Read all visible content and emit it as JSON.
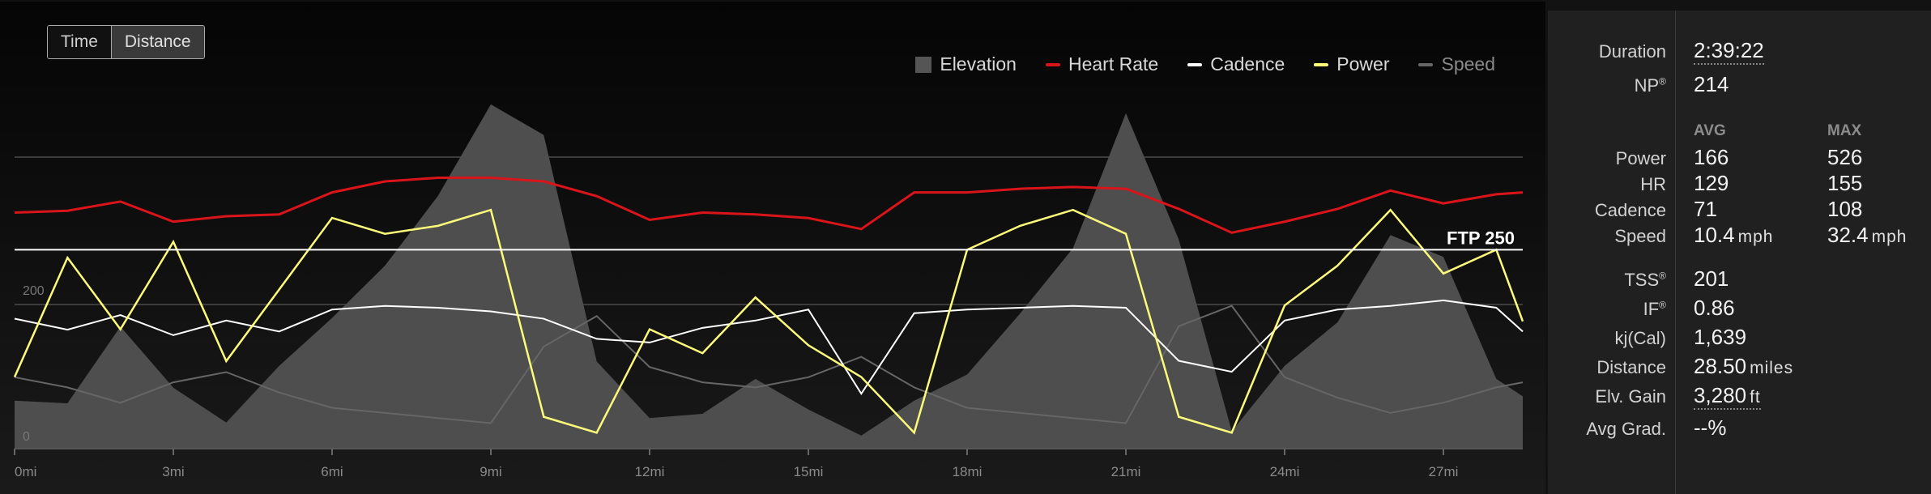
{
  "toggle": {
    "time_label": "Time",
    "distance_label": "Distance",
    "active": "distance"
  },
  "legend": [
    {
      "label": "Elevation",
      "color": "#555555",
      "kind": "box"
    },
    {
      "label": "Heart Rate",
      "color": "#d9141a",
      "kind": "line"
    },
    {
      "label": "Cadence",
      "color": "#ffffff",
      "kind": "line"
    },
    {
      "label": "Power",
      "color": "#fdfb7a",
      "kind": "line"
    },
    {
      "label": "Speed",
      "color": "#666666",
      "kind": "line"
    }
  ],
  "chart_data": {
    "type": "line",
    "x_unit": "mi",
    "xlim": [
      0,
      28.5
    ],
    "xticks": [
      "0mi",
      "3mi",
      "6mi",
      "9mi",
      "12mi",
      "15mi",
      "18mi",
      "21mi",
      "24mi",
      "27mi"
    ],
    "y_left_ticks": [
      "0",
      "200"
    ],
    "ylim_power": [
      0,
      460
    ],
    "ftp": {
      "label": "FTP 250",
      "value": 250
    },
    "x": [
      0,
      1,
      2,
      3,
      4,
      5,
      6,
      7,
      8,
      9,
      10,
      11,
      12,
      13,
      14,
      15,
      16,
      17,
      18,
      19,
      20,
      21,
      22,
      23,
      24,
      25,
      26,
      27,
      28,
      28.5
    ],
    "series": [
      {
        "name": "Elevation",
        "values": [
          55,
          52,
          140,
          70,
          30,
          95,
          150,
          210,
          290,
          395,
          360,
          100,
          35,
          40,
          80,
          45,
          15,
          55,
          85,
          155,
          230,
          385,
          240,
          20,
          95,
          145,
          245,
          220,
          80,
          60
        ]
      },
      {
        "name": "Heart Rate",
        "values": [
          129,
          130,
          135,
          124,
          127,
          128,
          140,
          146,
          148,
          148,
          146,
          138,
          125,
          129,
          128,
          126,
          120,
          140,
          140,
          142,
          143,
          142,
          131,
          118,
          124,
          131,
          141,
          134,
          139,
          140
        ]
      },
      {
        "name": "Cadence",
        "values": [
          71,
          65,
          73,
          62,
          70,
          64,
          76,
          78,
          77,
          75,
          71,
          60,
          58,
          66,
          70,
          76,
          30,
          74,
          76,
          77,
          78,
          77,
          48,
          42,
          70,
          76,
          78,
          81,
          77,
          64
        ]
      },
      {
        "name": "Power",
        "values": [
          90,
          240,
          150,
          260,
          110,
          200,
          290,
          270,
          280,
          300,
          40,
          20,
          150,
          120,
          190,
          130,
          90,
          20,
          250,
          280,
          300,
          270,
          40,
          20,
          180,
          230,
          300,
          220,
          250,
          160
        ]
      },
      {
        "name": "Speed",
        "values": [
          14,
          12,
          9,
          13,
          15,
          11,
          8,
          7,
          6,
          5,
          20,
          26,
          16,
          13,
          12,
          14,
          18,
          12,
          8,
          7,
          6,
          5,
          24,
          28,
          14,
          10,
          7,
          9,
          12,
          13
        ]
      }
    ]
  },
  "stats": {
    "duration_label": "Duration",
    "duration": "2:39:22",
    "np_label": "NP",
    "np": "214",
    "avg_header": "AVG",
    "max_header": "MAX",
    "power_label": "Power",
    "power_avg": "166",
    "power_max": "526",
    "hr_label": "HR",
    "hr_avg": "129",
    "hr_max": "155",
    "cadence_label": "Cadence",
    "cadence_avg": "71",
    "cadence_max": "108",
    "speed_label": "Speed",
    "speed_avg": "10.4",
    "speed_max": "32.4",
    "speed_unit": "mph",
    "tss_label": "TSS",
    "tss": "201",
    "if_label": "IF",
    "if": "0.86",
    "kj_label": "kj(Cal)",
    "kj": "1,639",
    "distance_label": "Distance",
    "distance": "28.50",
    "distance_unit": "miles",
    "elv_label": "Elv. Gain",
    "elv": "3,280",
    "elv_unit": "ft",
    "grad_label": "Avg Grad.",
    "grad": "--%",
    "reg": "®"
  }
}
